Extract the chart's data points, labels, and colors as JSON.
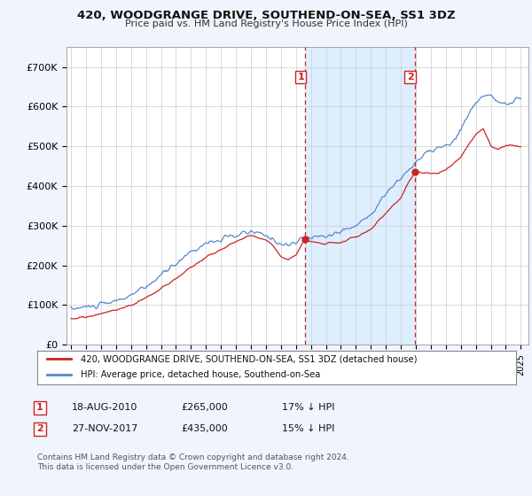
{
  "title": "420, WOODGRANGE DRIVE, SOUTHEND-ON-SEA, SS1 3DZ",
  "subtitle": "Price paid vs. HM Land Registry's House Price Index (HPI)",
  "ylim": [
    0,
    750000
  ],
  "yticks": [
    0,
    100000,
    200000,
    300000,
    400000,
    500000,
    600000,
    700000
  ],
  "ytick_labels": [
    "£0",
    "£100K",
    "£200K",
    "£300K",
    "£400K",
    "£500K",
    "£600K",
    "£700K"
  ],
  "hpi_color": "#5588cc",
  "price_color": "#cc2222",
  "dashed_color": "#cc2222",
  "shade_color": "#ddeeff",
  "background_color": "#f0f4fc",
  "plot_bg_color": "#ffffff",
  "grid_color": "#cccccc",
  "legend_label_red": "420, WOODGRANGE DRIVE, SOUTHEND-ON-SEA, SS1 3DZ (detached house)",
  "legend_label_blue": "HPI: Average price, detached house, Southend-on-Sea",
  "footer": "Contains HM Land Registry data © Crown copyright and database right 2024.\nThis data is licensed under the Open Government Licence v3.0.",
  "note1_label": "1",
  "note1_date": "18-AUG-2010",
  "note1_price": "£265,000",
  "note1_pct": "17% ↓ HPI",
  "note2_label": "2",
  "note2_date": "27-NOV-2017",
  "note2_price": "£435,000",
  "note2_pct": "15% ↓ HPI",
  "t1_year": 2010.625,
  "t2_year": 2017.917,
  "t1_price": 265000,
  "t2_price": 435000
}
